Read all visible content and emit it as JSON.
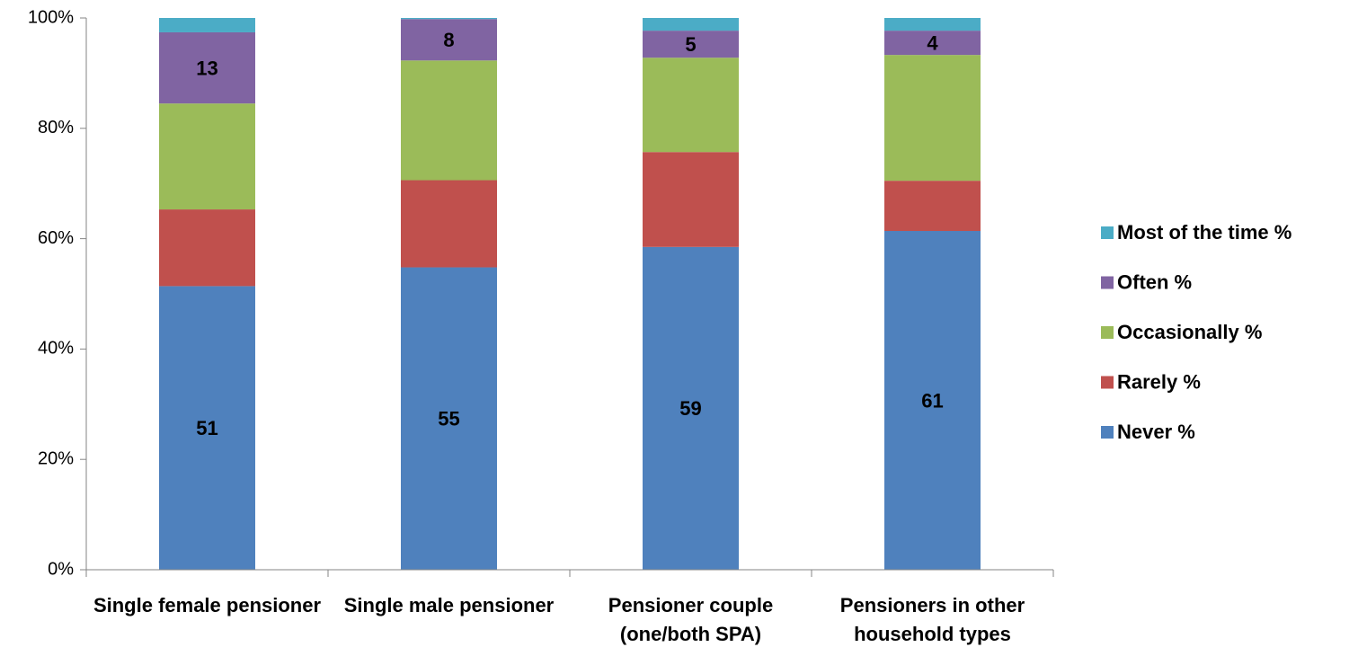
{
  "chart_data": {
    "type": "stacked_bar",
    "categories": [
      "Single female pensioner",
      "Single male pensioner",
      "Pensioner couple (one/both SPA)",
      "Pensioners in other household types"
    ],
    "series": [
      {
        "name": "Never %",
        "color": "#4f81bd",
        "values": [
          51.4,
          54.8,
          58.5,
          61.4
        ],
        "value_labels": [
          "51",
          "55",
          "59",
          "61"
        ]
      },
      {
        "name": "Rarely %",
        "color": "#c0504d",
        "values": [
          13.9,
          15.8,
          17.2,
          9.1
        ]
      },
      {
        "name": "Occasionally %",
        "color": "#9bbb59",
        "values": [
          19.2,
          21.7,
          17.1,
          22.8
        ]
      },
      {
        "name": "Often %",
        "color": "#8064a2",
        "values": [
          12.9,
          7.5,
          4.9,
          4.4
        ],
        "value_labels": [
          "13",
          "8",
          "5",
          "4"
        ]
      },
      {
        "name": "Most of the time %",
        "color": "#4bacc6",
        "values": [
          2.6,
          0.2,
          2.3,
          2.3
        ]
      }
    ],
    "ylim": [
      0,
      100
    ],
    "yticks": [
      {
        "value": 0,
        "label": "0%"
      },
      {
        "value": 20,
        "label": "20%"
      },
      {
        "value": 40,
        "label": "40%"
      },
      {
        "value": 60,
        "label": "60%"
      },
      {
        "value": 80,
        "label": "80%"
      },
      {
        "value": 100,
        "label": "100%"
      }
    ],
    "legend": "right"
  }
}
